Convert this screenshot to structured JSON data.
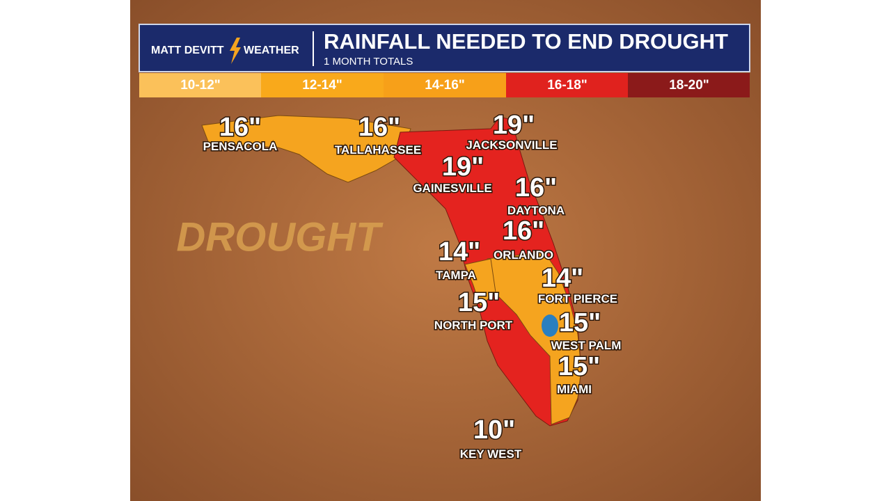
{
  "brand": {
    "name": "MATT DEVITT",
    "suffix": "WEATHER"
  },
  "title": "RAINFALL NEEDED TO END DROUGHT",
  "subtitle": "1 MONTH TOTALS",
  "legend": [
    "10-12\"",
    "12-14\"",
    "14-16\"",
    "16-18\"",
    "18-20\""
  ],
  "watermark": "DROUGHT",
  "cities": [
    {
      "name": "PENSACOLA",
      "amount": "16\""
    },
    {
      "name": "TALLAHASSEE",
      "amount": "16\""
    },
    {
      "name": "JACKSONVILLE",
      "amount": "19\""
    },
    {
      "name": "GAINESVILLE",
      "amount": "19\""
    },
    {
      "name": "DAYTONA",
      "amount": "16\""
    },
    {
      "name": "ORLANDO",
      "amount": "16\""
    },
    {
      "name": "TAMPA",
      "amount": "14\""
    },
    {
      "name": "FORT PIERCE",
      "amount": "14\""
    },
    {
      "name": "NORTH PORT",
      "amount": "15\""
    },
    {
      "name": "WEST PALM",
      "amount": "15\""
    },
    {
      "name": "MIAMI",
      "amount": "15\""
    },
    {
      "name": "KEY WEST",
      "amount": "10\""
    }
  ]
}
